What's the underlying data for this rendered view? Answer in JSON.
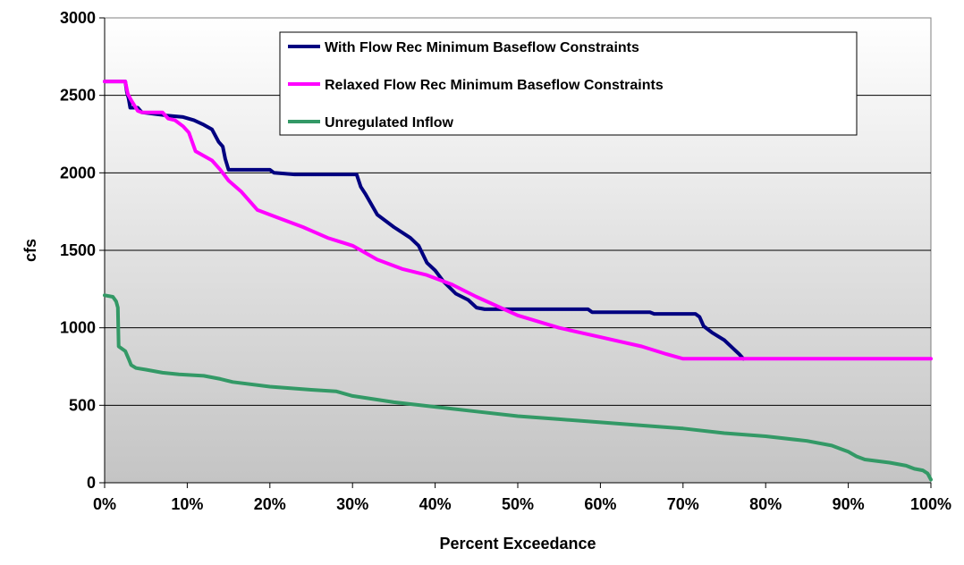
{
  "chart_data": {
    "type": "line",
    "title": "",
    "xlabel": "Percent Exceedance",
    "ylabel": "cfs",
    "xlim": [
      0,
      100
    ],
    "ylim": [
      0,
      3000
    ],
    "x_ticks": [
      0,
      10,
      20,
      30,
      40,
      50,
      60,
      70,
      80,
      90,
      100
    ],
    "x_tick_labels": [
      "0%",
      "10%",
      "20%",
      "30%",
      "40%",
      "50%",
      "60%",
      "70%",
      "80%",
      "90%",
      "100%"
    ],
    "y_ticks": [
      0,
      500,
      1000,
      1500,
      2000,
      2500,
      3000
    ],
    "y_tick_labels": [
      "0",
      "500",
      "1000",
      "1500",
      "2000",
      "2500",
      "3000"
    ],
    "grid": "horizontal",
    "legend_position": "top-right",
    "series": [
      {
        "name": "With Flow Rec Minimum Baseflow Constraints",
        "color": "#000080",
        "x": [
          0,
          2.5,
          2.7,
          2.9,
          3.1,
          4.0,
          4.5,
          7.5,
          9.5,
          10.8,
          12,
          13,
          13.8,
          14.3,
          14.6,
          15.0,
          15.5,
          20,
          20.5,
          23,
          30.5,
          31,
          31.6,
          33,
          35,
          37,
          38,
          39,
          40,
          41,
          42.5,
          44,
          45,
          46,
          50,
          53,
          58.5,
          59,
          66,
          66.5,
          71.5,
          72,
          72.5,
          73.5,
          75,
          76,
          76.8,
          77.3
        ],
        "y": [
          2590,
          2590,
          2520,
          2480,
          2420,
          2420,
          2390,
          2370,
          2360,
          2340,
          2310,
          2280,
          2200,
          2170,
          2090,
          2020,
          2020,
          2020,
          2000,
          1990,
          1990,
          1910,
          1860,
          1730,
          1650,
          1580,
          1530,
          1420,
          1370,
          1300,
          1220,
          1180,
          1130,
          1120,
          1120,
          1120,
          1120,
          1100,
          1100,
          1090,
          1090,
          1070,
          1010,
          970,
          920,
          870,
          830,
          800
        ]
      },
      {
        "name": "Relaxed Flow Rec Minimum Baseflow Constraints",
        "color": "#ff00ff",
        "x": [
          0,
          2.5,
          2.8,
          3.2,
          4.0,
          4.5,
          7,
          7.7,
          8.5,
          9.5,
          10.2,
          10.6,
          11,
          13,
          14,
          15,
          16.5,
          18.5,
          21,
          24,
          27,
          30,
          33,
          36,
          39,
          42,
          45,
          50,
          55,
          60,
          65,
          68,
          70,
          75,
          100
        ],
        "y": [
          2590,
          2590,
          2510,
          2470,
          2400,
          2390,
          2390,
          2350,
          2340,
          2300,
          2260,
          2200,
          2140,
          2080,
          2020,
          1950,
          1880,
          1760,
          1710,
          1650,
          1580,
          1530,
          1440,
          1380,
          1340,
          1280,
          1200,
          1080,
          1000,
          940,
          880,
          830,
          800,
          800,
          800
        ]
      },
      {
        "name": "Unregulated Inflow",
        "color": "#339966",
        "x": [
          0,
          1.0,
          1.4,
          1.6,
          1.7,
          2.5,
          2.9,
          3.2,
          3.8,
          5,
          7,
          9,
          12,
          14,
          15.5,
          20,
          25,
          28,
          30,
          35,
          40,
          45,
          50,
          55,
          60,
          65,
          70,
          75,
          80,
          85,
          88,
          89,
          90,
          91,
          92,
          95,
          97,
          98,
          99,
          99.6,
          100
        ],
        "y": [
          1210,
          1200,
          1170,
          1130,
          880,
          850,
          800,
          760,
          740,
          730,
          710,
          700,
          690,
          670,
          650,
          620,
          600,
          590,
          560,
          520,
          490,
          460,
          430,
          410,
          390,
          370,
          350,
          320,
          300,
          270,
          240,
          220,
          200,
          170,
          150,
          130,
          110,
          90,
          80,
          60,
          20
        ]
      }
    ]
  }
}
